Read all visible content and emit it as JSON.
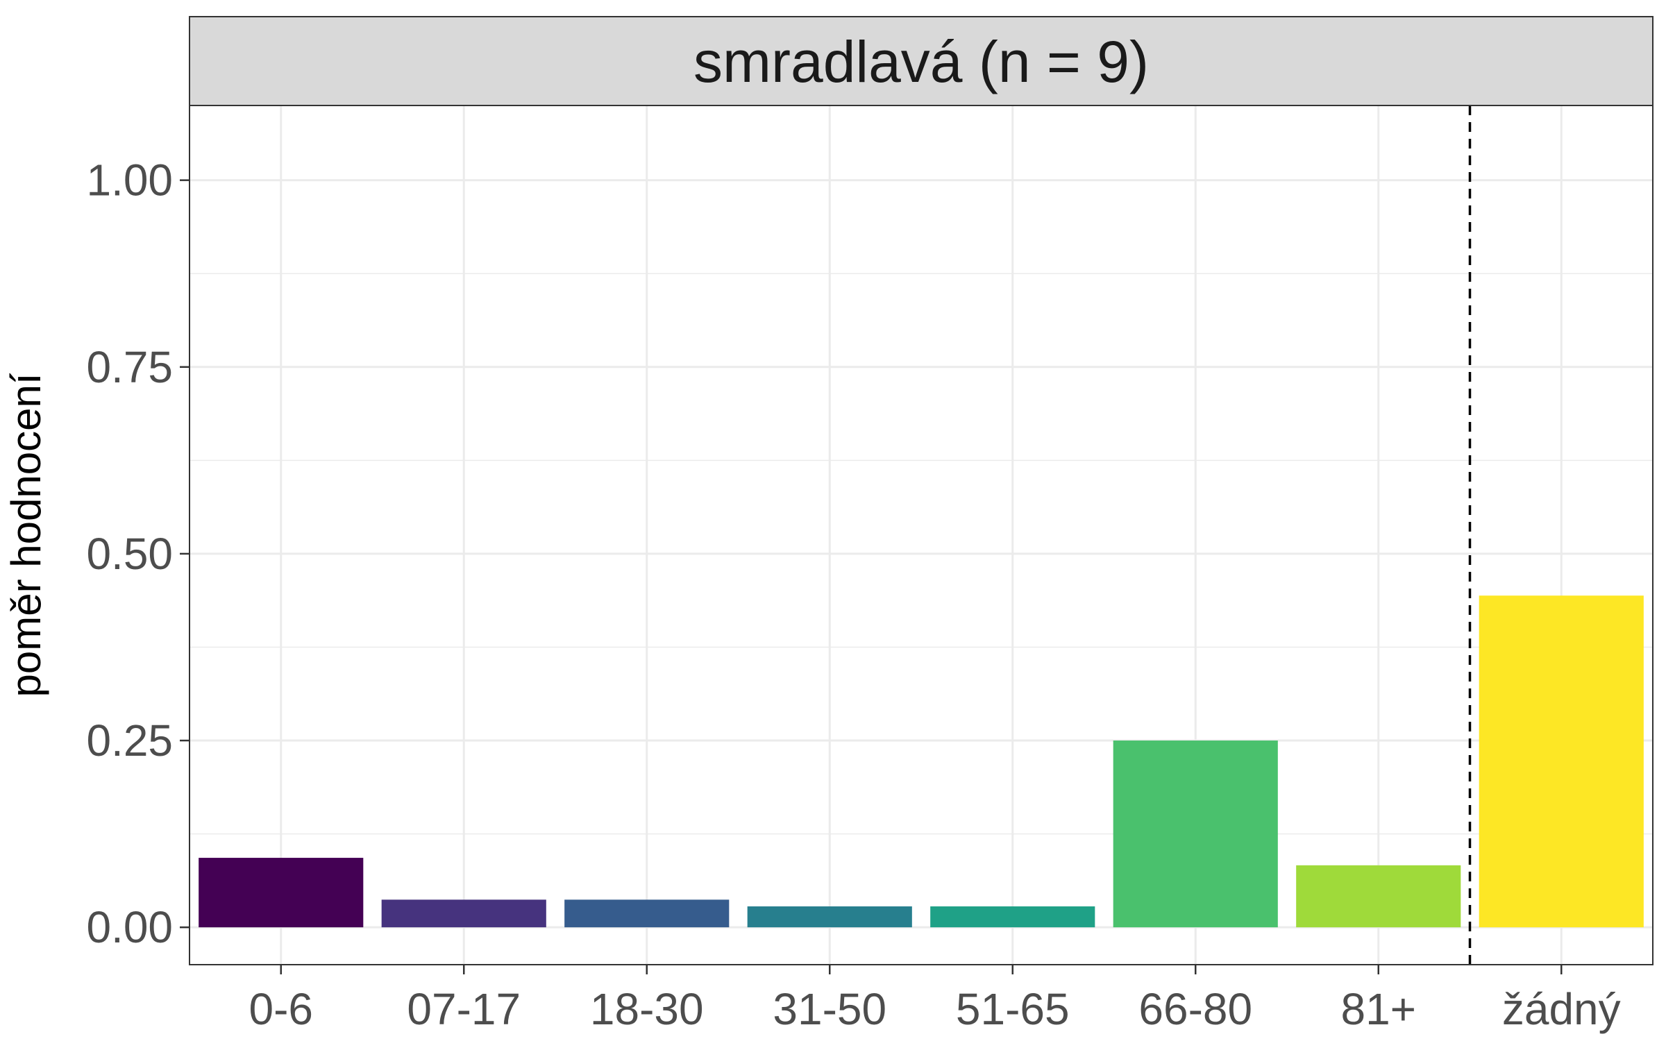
{
  "chart_data": {
    "type": "bar",
    "facet_title": "smradlavá (n = 9)",
    "xlabel": "",
    "ylabel": "poměr hodnocení",
    "categories": [
      "0-6",
      "07-17",
      "18-30",
      "31-50",
      "51-65",
      "66-80",
      "81+",
      "žádný"
    ],
    "values": [
      0.093,
      0.037,
      0.037,
      0.028,
      0.028,
      0.25,
      0.083,
      0.444
    ],
    "colors": [
      "#440154",
      "#46337E",
      "#365C8D",
      "#277F8E",
      "#1FA187",
      "#4AC16D",
      "#9FDA3A",
      "#FDE725"
    ],
    "ylim": [
      -0.05,
      1.1
    ],
    "y_ticks": [
      "0.00",
      "0.25",
      "0.50",
      "0.75",
      "1.00"
    ],
    "y_tick_values": [
      0,
      0.25,
      0.5,
      0.75,
      1.0
    ],
    "reference_line": {
      "style": "dashed",
      "between": [
        "81+",
        "žádný"
      ]
    },
    "grid": true,
    "legend": "none"
  }
}
